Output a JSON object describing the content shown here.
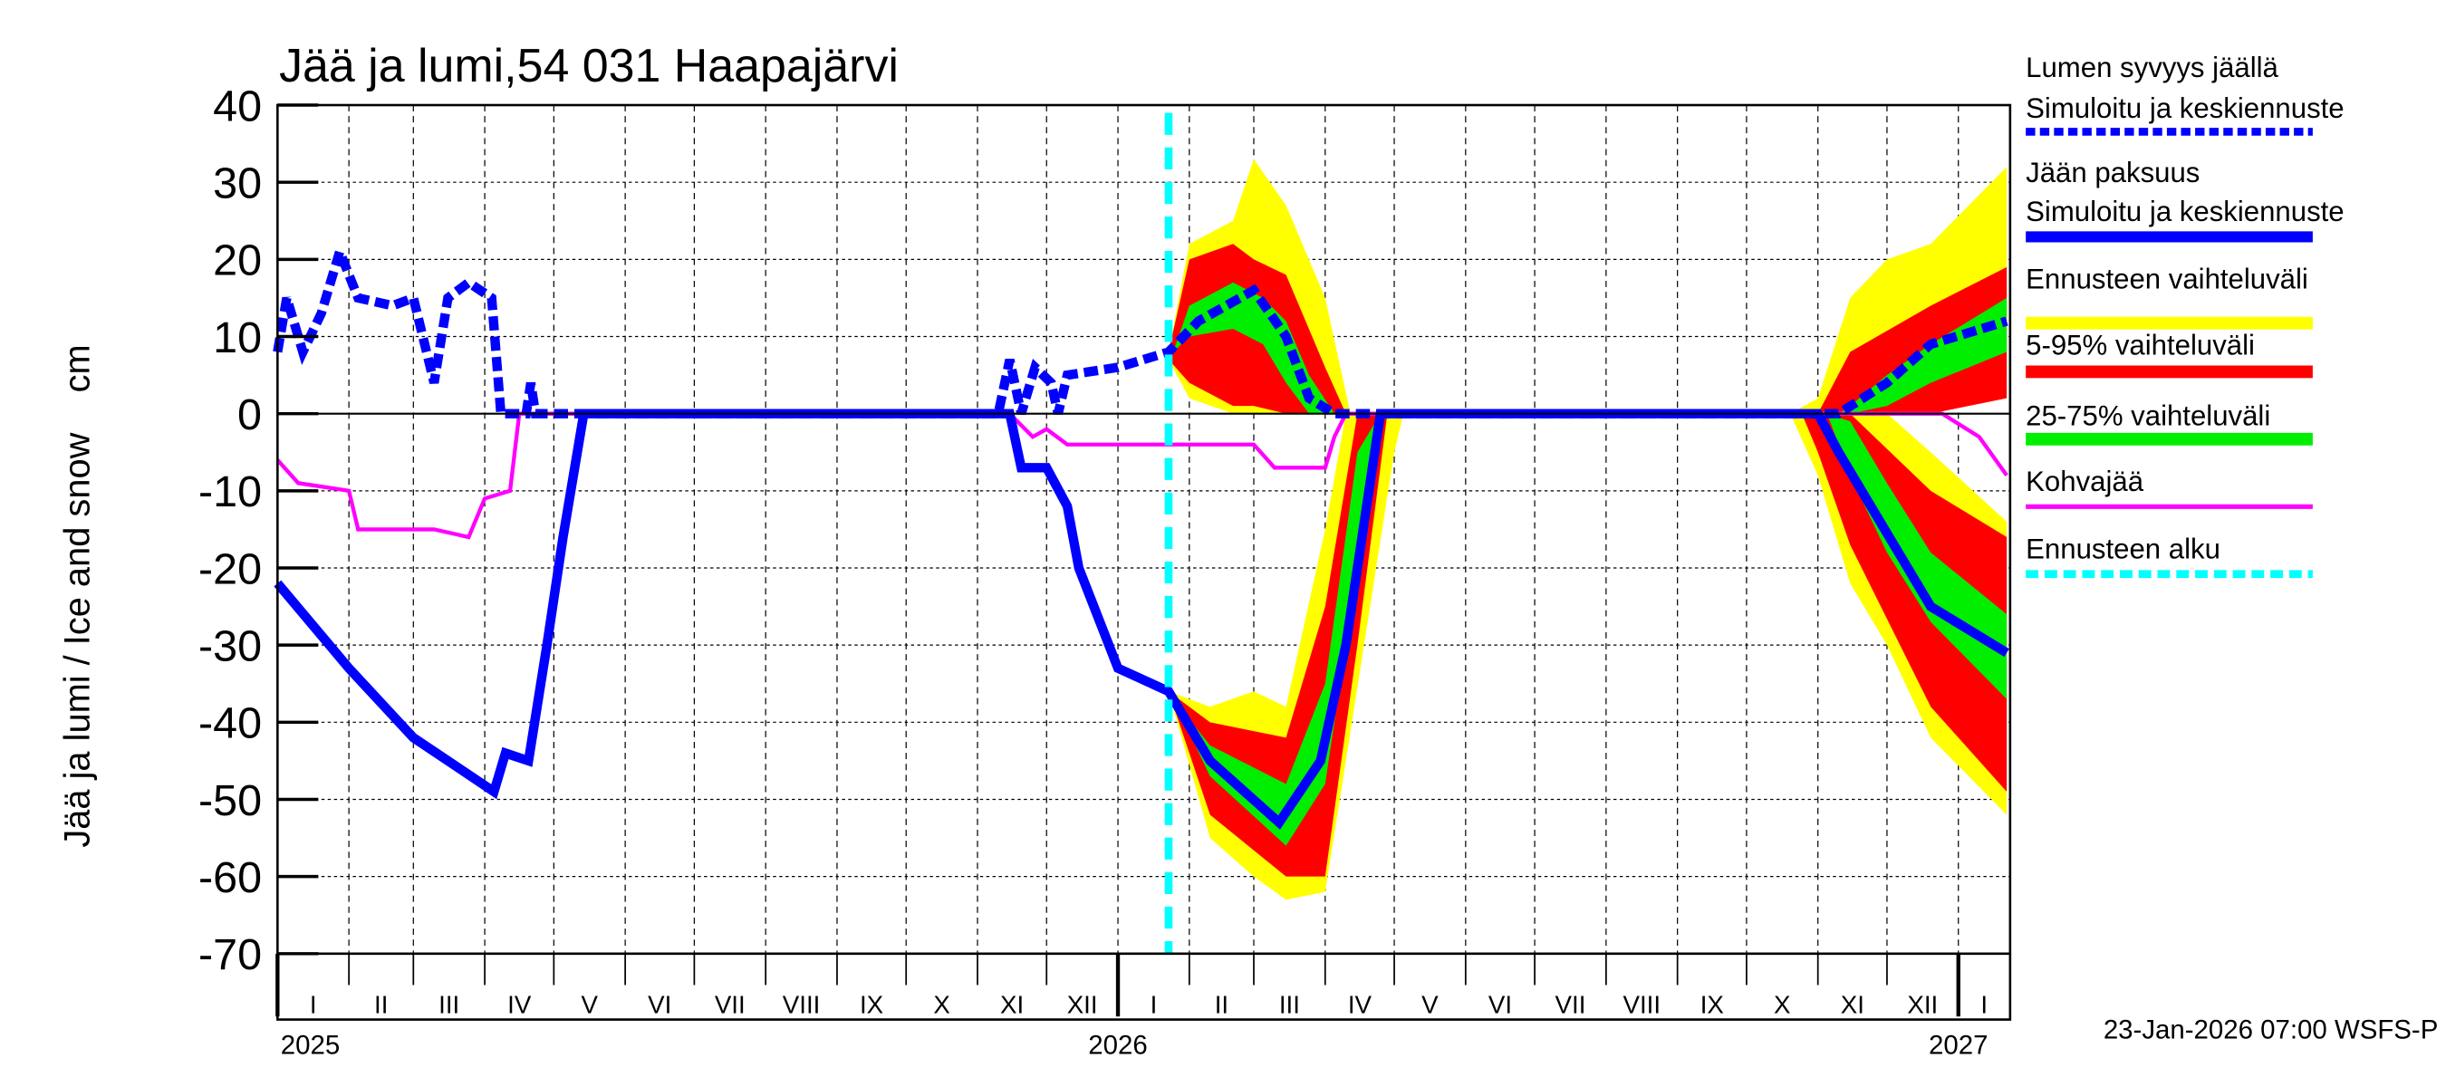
{
  "chart_data": {
    "type": "line",
    "title": "Jää ja lumi,54 031 Haapajärvi",
    "ylabel": "Jää ja lumi / Ice and snow    cm",
    "ylim": [
      -70,
      40
    ],
    "yticks": [
      40,
      30,
      20,
      10,
      0,
      -10,
      -20,
      -30,
      -40,
      -50,
      -60,
      -70
    ],
    "xlim": [
      "2025-01-01",
      "2027-01-23"
    ],
    "month_labels": [
      "I",
      "II",
      "III",
      "IV",
      "V",
      "VI",
      "VII",
      "VIII",
      "IX",
      "X",
      "XI",
      "XII",
      "I",
      "II",
      "III",
      "IV",
      "V",
      "VI",
      "VII",
      "VIII",
      "IX",
      "X",
      "XI",
      "XII",
      "I"
    ],
    "year_labels": [
      "2025",
      "2026",
      "2027"
    ],
    "grid": true,
    "forecast_start": "2026-01-23",
    "footer": "23-Jan-2026 07:00 WSFS-P",
    "colors": {
      "snow": "#0000ff",
      "ice": "#0000ff",
      "kohva": "#ff00ff",
      "range_all": "#ffff00",
      "range_5_95": "#ff0000",
      "range_25_75": "#00ee00",
      "forecast_start": "#00ffff"
    },
    "legend": [
      {
        "label1": "Lumen syvyys jäällä",
        "label2": "Simuloitu ja keskiennuste",
        "style": "dashed-blue"
      },
      {
        "label1": "Jään paksuus",
        "label2": "Simuloitu ja keskiennuste",
        "style": "solid-blue"
      },
      {
        "label1": "Ennusteen vaihteluväli",
        "style": "yellow"
      },
      {
        "label1": "5-95% vaihteluväli",
        "style": "red"
      },
      {
        "label1": "25-75% vaihteluväli",
        "style": "green"
      },
      {
        "label1": "Kohvajää",
        "style": "magenta"
      },
      {
        "label1": "Ennusteen alku",
        "style": "dashed-cyan"
      }
    ],
    "series": [
      {
        "name": "Lumen syvyys jäällä",
        "points": [
          [
            "2025-01-01",
            8
          ],
          [
            "2025-01-05",
            15
          ],
          [
            "2025-01-12",
            8
          ],
          [
            "2025-01-20",
            13
          ],
          [
            "2025-01-28",
            21
          ],
          [
            "2025-02-05",
            15
          ],
          [
            "2025-02-20",
            14
          ],
          [
            "2025-03-01",
            15
          ],
          [
            "2025-03-10",
            4
          ],
          [
            "2025-03-16",
            15
          ],
          [
            "2025-03-25",
            17
          ],
          [
            "2025-04-04",
            15
          ],
          [
            "2025-04-08",
            0
          ],
          [
            "2025-04-19",
            0
          ],
          [
            "2025-04-21",
            4
          ],
          [
            "2025-04-23",
            0
          ],
          [
            "2025-11-10",
            0
          ],
          [
            "2025-11-15",
            7
          ],
          [
            "2025-11-20",
            0
          ],
          [
            "2025-11-26",
            6
          ],
          [
            "2025-12-03",
            4
          ],
          [
            "2025-12-06",
            0
          ],
          [
            "2025-12-10",
            5
          ],
          [
            "2026-01-01",
            6
          ],
          [
            "2026-01-23",
            8
          ],
          [
            "2026-02-05",
            12
          ],
          [
            "2026-03-01",
            16
          ],
          [
            "2026-03-15",
            10
          ],
          [
            "2026-03-25",
            2
          ],
          [
            "2026-04-05",
            0
          ],
          [
            "2026-11-10",
            0
          ],
          [
            "2026-12-01",
            4
          ],
          [
            "2026-12-20",
            9
          ],
          [
            "2027-01-22",
            12
          ]
        ]
      },
      {
        "name": "Jään paksuus",
        "points": [
          [
            "2025-01-01",
            -22
          ],
          [
            "2025-02-01",
            -33
          ],
          [
            "2025-03-01",
            -42
          ],
          [
            "2025-04-05",
            -49
          ],
          [
            "2025-04-10",
            -44
          ],
          [
            "2025-04-20",
            -45
          ],
          [
            "2025-04-28",
            -30
          ],
          [
            "2025-05-05",
            -16
          ],
          [
            "2025-05-14",
            0
          ],
          [
            "2025-11-15",
            0
          ],
          [
            "2025-11-20",
            -7
          ],
          [
            "2025-12-01",
            -7
          ],
          [
            "2025-12-10",
            -12
          ],
          [
            "2025-12-15",
            -20
          ],
          [
            "2026-01-01",
            -33
          ],
          [
            "2026-01-23",
            -36
          ],
          [
            "2026-02-10",
            -45
          ],
          [
            "2026-03-12",
            -53
          ],
          [
            "2026-03-30",
            -45
          ],
          [
            "2026-04-10",
            -30
          ],
          [
            "2026-04-25",
            0
          ],
          [
            "2026-11-01",
            0
          ],
          [
            "2026-11-10",
            -5
          ],
          [
            "2026-11-30",
            -15
          ],
          [
            "2026-12-20",
            -25
          ],
          [
            "2027-01-22",
            -31
          ]
        ]
      },
      {
        "name": "Kohvajää",
        "points": [
          [
            "2025-01-01",
            -6
          ],
          [
            "2025-01-10",
            -9
          ],
          [
            "2025-02-01",
            -10
          ],
          [
            "2025-02-05",
            -15
          ],
          [
            "2025-03-10",
            -15
          ],
          [
            "2025-03-25",
            -16
          ],
          [
            "2025-04-01",
            -11
          ],
          [
            "2025-04-12",
            -10
          ],
          [
            "2025-04-16",
            0
          ],
          [
            "2025-11-15",
            0
          ],
          [
            "2025-11-25",
            -3
          ],
          [
            "2025-12-01",
            -2
          ],
          [
            "2025-12-10",
            -4
          ],
          [
            "2026-03-01",
            -4
          ],
          [
            "2026-03-10",
            -7
          ],
          [
            "2026-04-01",
            -7
          ],
          [
            "2026-04-05",
            -3
          ],
          [
            "2026-04-10",
            0
          ],
          [
            "2026-12-25",
            0
          ],
          [
            "2027-01-10",
            -3
          ],
          [
            "2027-01-22",
            -8
          ]
        ]
      }
    ],
    "bands": [
      {
        "name": "Ennusteen vaihteluväli",
        "segments": [
          [
            [
              "2026-01-23",
              7,
              8
            ],
            [
              "2026-02-01",
              2,
              22
            ],
            [
              "2026-02-20",
              0,
              25
            ],
            [
              "2026-03-01",
              0,
              33
            ],
            [
              "2026-03-15",
              0,
              27
            ],
            [
              "2026-04-01",
              0,
              15
            ],
            [
              "2026-04-12",
              0,
              0
            ]
          ],
          [
            [
              "2026-01-23",
              -36,
              -36
            ],
            [
              "2026-02-10",
              -55,
              -38
            ],
            [
              "2026-03-01",
              -60,
              -36
            ],
            [
              "2026-03-15",
              -63,
              -38
            ],
            [
              "2026-04-01",
              -62,
              -15
            ],
            [
              "2026-04-10",
              -45,
              0
            ],
            [
              "2026-05-01",
              -5,
              0
            ],
            [
              "2026-05-05",
              0,
              0
            ]
          ],
          [
            [
              "2026-10-20",
              0,
              0
            ],
            [
              "2026-11-01",
              0,
              2
            ],
            [
              "2026-11-15",
              0,
              15
            ],
            [
              "2026-12-01",
              0,
              20
            ],
            [
              "2026-12-20",
              0,
              22
            ],
            [
              "2027-01-22",
              5,
              32
            ]
          ],
          [
            [
              "2026-10-20",
              0,
              0
            ],
            [
              "2026-11-01",
              -8,
              0
            ],
            [
              "2026-11-15",
              -22,
              0
            ],
            [
              "2026-12-01",
              -30,
              0
            ],
            [
              "2026-12-20",
              -42,
              -5
            ],
            [
              "2027-01-22",
              -52,
              -14
            ]
          ]
        ]
      },
      {
        "name": "5-95% vaihteluväli",
        "segments": [
          [
            [
              "2026-01-23",
              7,
              8
            ],
            [
              "2026-02-01",
              4,
              20
            ],
            [
              "2026-02-20",
              1,
              22
            ],
            [
              "2026-03-01",
              1,
              20
            ],
            [
              "2026-03-15",
              0,
              18
            ],
            [
              "2026-04-01",
              0,
              6
            ],
            [
              "2026-04-10",
              0,
              0
            ]
          ],
          [
            [
              "2026-01-23",
              -36,
              -36
            ],
            [
              "2026-02-10",
              -52,
              -40
            ],
            [
              "2026-03-15",
              -60,
              -42
            ],
            [
              "2026-04-01",
              -60,
              -25
            ],
            [
              "2026-04-15",
              -30,
              0
            ],
            [
              "2026-04-28",
              0,
              0
            ]
          ],
          [
            [
              "2026-11-01",
              0,
              0
            ],
            [
              "2026-11-15",
              0,
              8
            ],
            [
              "2026-12-20",
              0,
              14
            ],
            [
              "2027-01-22",
              2,
              19
            ]
          ],
          [
            [
              "2026-10-25",
              0,
              0
            ],
            [
              "2026-11-01",
              -5,
              0
            ],
            [
              "2026-11-15",
              -17,
              0
            ],
            [
              "2026-12-20",
              -38,
              -10
            ],
            [
              "2027-01-22",
              -49,
              -16
            ]
          ]
        ]
      },
      {
        "name": "25-75% vaihteluväli",
        "segments": [
          [
            [
              "2026-01-25",
              8,
              8
            ],
            [
              "2026-02-01",
              10,
              14
            ],
            [
              "2026-02-20",
              11,
              17
            ],
            [
              "2026-03-05",
              9,
              15
            ],
            [
              "2026-03-15",
              4,
              12
            ],
            [
              "2026-03-25",
              0,
              5
            ],
            [
              "2026-04-05",
              0,
              0
            ]
          ],
          [
            [
              "2026-01-25",
              -37,
              -37
            ],
            [
              "2026-02-10",
              -47,
              -43
            ],
            [
              "2026-03-15",
              -56,
              -48
            ],
            [
              "2026-04-01",
              -48,
              -35
            ],
            [
              "2026-04-15",
              -20,
              -5
            ],
            [
              "2026-04-25",
              0,
              0
            ]
          ],
          [
            [
              "2026-11-10",
              0,
              0
            ],
            [
              "2026-11-15",
              0,
              1
            ],
            [
              "2026-12-01",
              1,
              5
            ],
            [
              "2026-12-20",
              4,
              9
            ],
            [
              "2027-01-22",
              8,
              15
            ]
          ],
          [
            [
              "2026-11-05",
              0,
              0
            ],
            [
              "2026-11-15",
              -8,
              -1
            ],
            [
              "2026-12-01",
              -18,
              -9
            ],
            [
              "2026-12-20",
              -27,
              -18
            ],
            [
              "2027-01-22",
              -37,
              -26
            ]
          ]
        ]
      }
    ]
  }
}
